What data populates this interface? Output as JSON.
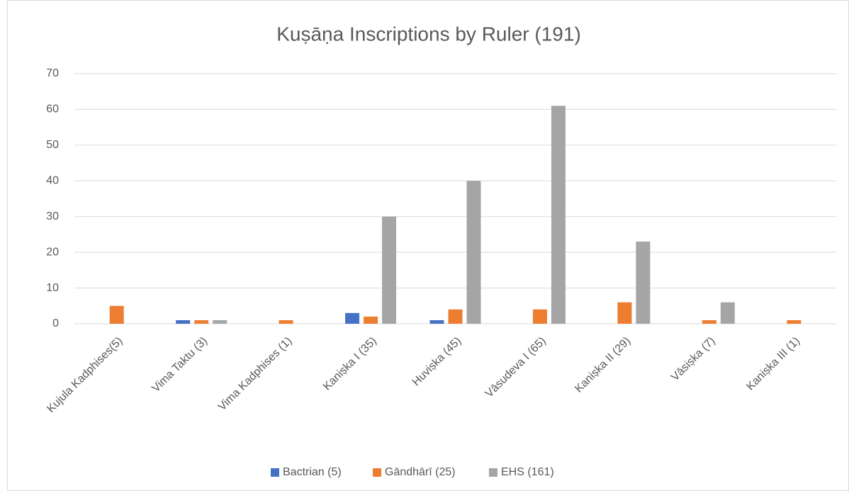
{
  "chart_data": {
    "type": "bar",
    "title": "Kuṣāṇa Inscriptions by Ruler (191)",
    "categories": [
      "Kujula Kadphises(5)",
      "Vima Taktu (3)",
      "Vima Kadphises (1)",
      "Kaniṣka I (35)",
      "Huviṣka (45)",
      "Vāsudeva I (65)",
      "Kaniṣka II (29)",
      "Vāsiṣka (7)",
      "Kaniṣka III (1)"
    ],
    "series": [
      {
        "name": "Bactrian (5)",
        "color": "#4472c4",
        "values": [
          0,
          1,
          0,
          3,
          1,
          0,
          0,
          0,
          0
        ]
      },
      {
        "name": "Gāndhārī (25)",
        "color": "#ed7d31",
        "values": [
          5,
          1,
          1,
          2,
          4,
          4,
          6,
          1,
          1
        ]
      },
      {
        "name": "EHS (161)",
        "color": "#a5a5a5",
        "values": [
          0,
          1,
          0,
          30,
          40,
          61,
          23,
          6,
          0
        ]
      }
    ],
    "ylim": [
      0,
      70
    ],
    "yticks": [
      0,
      10,
      20,
      30,
      40,
      50,
      60,
      70
    ],
    "grid": true,
    "legend": "bottom"
  }
}
